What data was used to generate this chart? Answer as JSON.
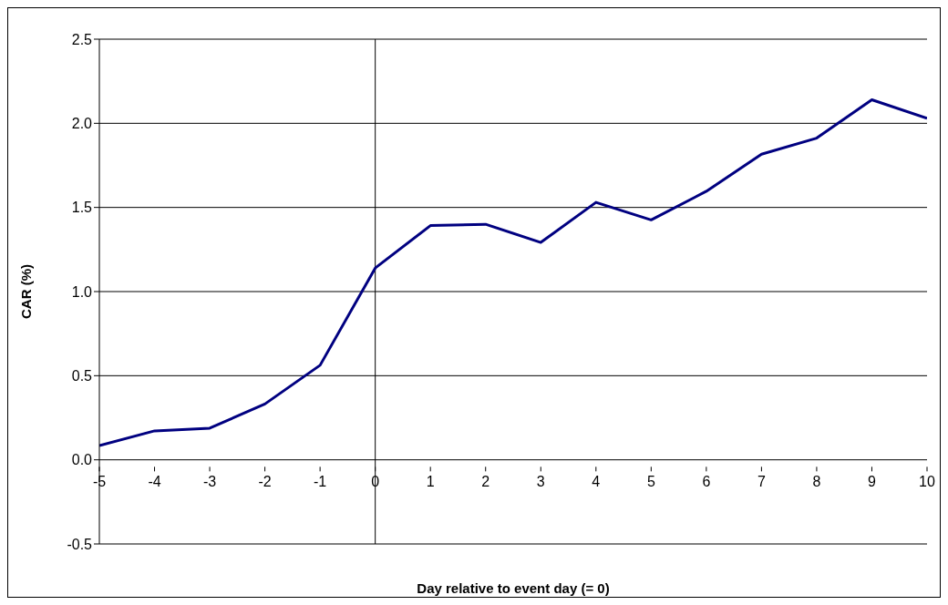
{
  "chart_data": {
    "type": "line",
    "xlabel": "Day  relative to event day (= 0)",
    "ylabel": "CAR (%)",
    "x": [
      -5,
      -4,
      -3,
      -2,
      -1,
      0,
      1,
      2,
      3,
      4,
      5,
      6,
      7,
      8,
      9,
      10
    ],
    "series": [
      {
        "color": "#000080",
        "values": [
          0.084,
          0.172,
          0.188,
          0.332,
          0.562,
          1.14,
          1.392,
          1.4,
          1.292,
          1.53,
          1.426,
          1.596,
          1.816,
          1.912,
          2.14,
          2.03
        ]
      }
    ],
    "xlim": [
      -5,
      10
    ],
    "xticks": [
      -5,
      -4,
      -3,
      -2,
      -1,
      0,
      1,
      2,
      3,
      4,
      5,
      6,
      7,
      8,
      9,
      10
    ],
    "ylim": [
      -0.5,
      2.5
    ],
    "yticks": [
      {
        "value": -0.5,
        "label": "-0.5"
      },
      {
        "value": 0,
        "label": "0.0"
      },
      {
        "value": 0.5,
        "label": "0.5"
      },
      {
        "value": 1,
        "label": "1.0"
      },
      {
        "value": 1.5,
        "label": "1.5"
      },
      {
        "value": 2,
        "label": "2.0"
      },
      {
        "value": 2.5,
        "label": "2.5"
      }
    ],
    "ref_lines": [
      {
        "axis": "x",
        "value": 0,
        "color": "#000000"
      }
    ],
    "grid": "y",
    "marker": "none",
    "line_style": "solid"
  }
}
